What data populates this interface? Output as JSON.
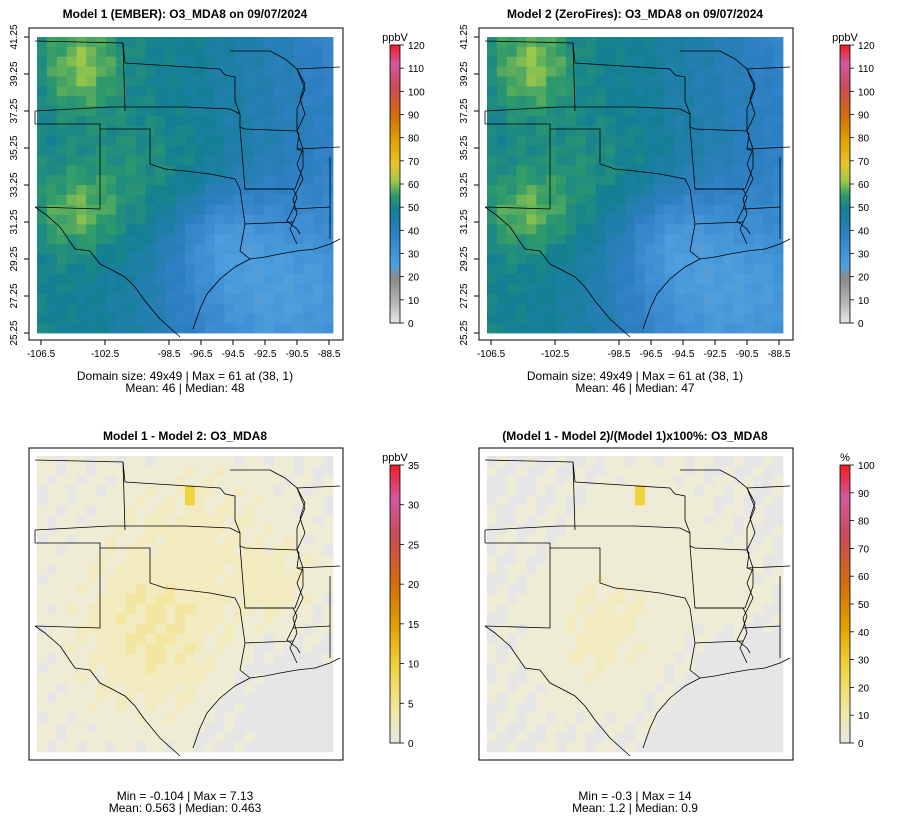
{
  "chart_data": [
    {
      "type": "heatmap",
      "title": "Model 1 (EMBER): O3_MDA8 on 09/07/2024",
      "variable": "O3_MDA8",
      "date": "09/07/2024",
      "x_ticks": [
        "-106.5",
        "-102.5",
        "-98.5",
        "-96.5",
        "-94.5",
        "-92.5",
        "-90.5",
        "-88.5"
      ],
      "x_tick_values": [
        -106.5,
        -102.5,
        -98.5,
        -96.5,
        -94.5,
        -92.5,
        -90.5,
        -88.5
      ],
      "y_ticks": [
        "25.25",
        "27.25",
        "29.25",
        "31.25",
        "33.25",
        "35.25",
        "37.25",
        "39.25",
        "41.25"
      ],
      "y_tick_values": [
        25.25,
        27.25,
        29.25,
        31.25,
        33.25,
        35.25,
        37.25,
        39.25,
        41.25
      ],
      "xlim": [
        -106.75,
        -88.25
      ],
      "ylim": [
        25.25,
        41.25
      ],
      "colorbar": {
        "unit": "ppbV",
        "ticks": [
          "0",
          "10",
          "20",
          "30",
          "40",
          "50",
          "60",
          "70",
          "80",
          "90",
          "100",
          "110",
          "120"
        ],
        "range": [
          0,
          120
        ]
      },
      "stats": {
        "domain_size": "49x49",
        "max": 61,
        "max_at": "(38, 1)",
        "mean": 46,
        "median": 48
      },
      "caption_line1": "Domain size: 49x49 | Max = 61 at (38, 1)",
      "caption_line2": "Mean: 46 |  Median: 48"
    },
    {
      "type": "heatmap",
      "title": "Model 2 (ZeroFires): O3_MDA8 on 09/07/2024",
      "variable": "O3_MDA8",
      "date": "09/07/2024",
      "x_ticks": [
        "-106.5",
        "-102.5",
        "-98.5",
        "-96.5",
        "-94.5",
        "-92.5",
        "-90.5",
        "-88.5"
      ],
      "x_tick_values": [
        -106.5,
        -102.5,
        -98.5,
        -96.5,
        -94.5,
        -92.5,
        -90.5,
        -88.5
      ],
      "y_ticks": [
        "25.25",
        "27.25",
        "29.25",
        "31.25",
        "33.25",
        "35.25",
        "37.25",
        "39.25",
        "41.25"
      ],
      "y_tick_values": [
        25.25,
        27.25,
        29.25,
        31.25,
        33.25,
        35.25,
        37.25,
        39.25,
        41.25
      ],
      "xlim": [
        -106.75,
        -88.25
      ],
      "ylim": [
        25.25,
        41.25
      ],
      "colorbar": {
        "unit": "ppbV",
        "ticks": [
          "0",
          "10",
          "20",
          "30",
          "40",
          "50",
          "60",
          "70",
          "80",
          "90",
          "100",
          "110",
          "120"
        ],
        "range": [
          0,
          120
        ]
      },
      "stats": {
        "domain_size": "49x49",
        "max": 61,
        "max_at": "(38, 1)",
        "mean": 46,
        "median": 47
      },
      "caption_line1": "Domain size: 49x49 | Max = 61 at (38, 1)",
      "caption_line2": "Mean: 46 |  Median: 47"
    },
    {
      "type": "heatmap",
      "title": "Model 1 - Model 2: O3_MDA8",
      "variable": "O3_MDA8",
      "colorbar": {
        "unit": "ppbV",
        "ticks": [
          "0",
          "5",
          "10",
          "15",
          "20",
          "25",
          "30",
          "35"
        ],
        "range": [
          0,
          35
        ]
      },
      "stats": {
        "min": -0.104,
        "max": 7.13,
        "mean": 0.563,
        "median": 0.463
      },
      "caption_line1": "Min = -0.104 | Max = 7.13",
      "caption_line2": "Mean: 0.563 |  Median: 0.463"
    },
    {
      "type": "heatmap",
      "title": "(Model 1 - Model 2)/(Model 1)x100%: O3_MDA8",
      "variable": "O3_MDA8",
      "colorbar": {
        "unit": "%",
        "ticks": [
          "0",
          "10",
          "20",
          "30",
          "40",
          "50",
          "60",
          "70",
          "80",
          "90",
          "100"
        ],
        "range": [
          0,
          100
        ]
      },
      "stats": {
        "min": -0.3,
        "max": 14,
        "mean": 1.2,
        "median": 0.9
      },
      "caption_line1": "Min = -0.3 | Max = 14",
      "caption_line2": "Mean: 1.2 |  Median: 0.9"
    }
  ],
  "colors": {
    "scale": [
      "#e6e6e6",
      "#b3b3b3",
      "#8a8a8a",
      "#4fa0e0",
      "#2f7fc4",
      "#137f93",
      "#2e9a6b",
      "#9cc84a",
      "#e6c52c",
      "#e0a000",
      "#d26a0f",
      "#c94a58",
      "#d25aa0",
      "#ee1c24"
    ],
    "diff_low": "#e6e6e6",
    "diff_pale": "#f1ecc6",
    "diff_yellow": "#f0d23a"
  }
}
